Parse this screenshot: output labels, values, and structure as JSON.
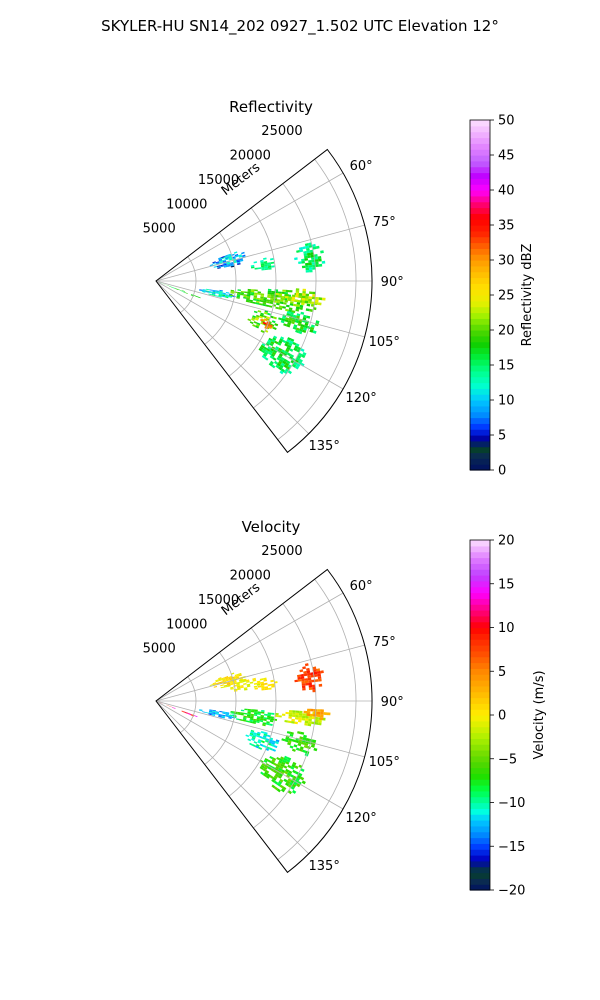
{
  "figure": {
    "suptitle": "SKYLER-HU  SN14_202  0927_1.502 UTC Elevation 12°"
  },
  "chart_data": [
    {
      "type": "heatmap",
      "projection": "polar-sector",
      "title": "Reflectivity",
      "radial_label": "Meters",
      "radial_ticks": [
        5000,
        10000,
        15000,
        20000,
        25000
      ],
      "radial_tick_labels": [
        "5000",
        "10000",
        "15000",
        "20000",
        "25000"
      ],
      "rmax": 27000,
      "angular_range_deg": [
        52.5,
        142.5
      ],
      "angular_ticks": [
        60,
        75,
        90,
        105,
        120,
        135
      ],
      "angular_tick_labels": [
        "60°",
        "75°",
        "90°",
        "105°",
        "120°",
        "135°"
      ],
      "grid": true,
      "colorbar": {
        "label": "Reflectivity dBZ",
        "range": [
          0,
          50
        ],
        "ticks": [
          0,
          5,
          10,
          15,
          20,
          25,
          30,
          35,
          40,
          45,
          50
        ],
        "tick_labels": [
          "0",
          "5",
          "10",
          "15",
          "20",
          "25",
          "30",
          "35",
          "40",
          "45",
          "50"
        ]
      },
      "echo_regions": [
        {
          "az": [
            69,
            79
          ],
          "r": [
            7000,
            11500
          ],
          "value": 10,
          "spread": 4
        },
        {
          "az": [
            78,
            84
          ],
          "r": [
            12000,
            15000
          ],
          "value": 15,
          "spread": 2
        },
        {
          "az": [
            76,
            86
          ],
          "r": [
            17500,
            21000
          ],
          "value": 16,
          "spread": 3
        },
        {
          "az": [
            98,
            104
          ],
          "r": [
            5500,
            10000
          ],
          "value": 13,
          "spread": 4
        },
        {
          "az": [
            94,
            103
          ],
          "r": [
            9000,
            20000
          ],
          "value": 20,
          "spread": 3
        },
        {
          "az": [
            93,
            99
          ],
          "r": [
            15000,
            21000
          ],
          "value": 23,
          "spread": 3
        },
        {
          "az": [
            105,
            115
          ],
          "r": [
            12000,
            16000
          ],
          "value": 21,
          "spread": 4
        },
        {
          "az": [
            109,
            113
          ],
          "r": [
            13500,
            15500
          ],
          "value": 34,
          "spread": 3
        },
        {
          "az": [
            102,
            110
          ],
          "r": [
            16000,
            21000
          ],
          "value": 18,
          "spread": 3
        },
        {
          "az": [
            113,
            126
          ],
          "r": [
            15000,
            21000
          ],
          "value": 17,
          "spread": 3
        },
        {
          "az": [
            109.5,
            111.5
          ],
          "r": [
            500,
            6000
          ],
          "value": 18,
          "spread": 2
        }
      ]
    },
    {
      "type": "heatmap",
      "projection": "polar-sector",
      "title": "Velocity",
      "radial_label": "Meters",
      "radial_ticks": [
        5000,
        10000,
        15000,
        20000,
        25000
      ],
      "radial_tick_labels": [
        "5000",
        "10000",
        "15000",
        "20000",
        "25000"
      ],
      "rmax": 27000,
      "angular_range_deg": [
        52.5,
        142.5
      ],
      "angular_ticks": [
        60,
        75,
        90,
        105,
        120,
        135
      ],
      "angular_tick_labels": [
        "60°",
        "75°",
        "90°",
        "105°",
        "120°",
        "135°"
      ],
      "grid": true,
      "colorbar": {
        "label": "Velocity (m/s)",
        "range": [
          -20,
          20
        ],
        "ticks": [
          -20,
          -15,
          -10,
          -5,
          0,
          5,
          10,
          15,
          20
        ],
        "tick_labels": [
          "−20",
          "−15",
          "−10",
          "−5",
          "0",
          "5",
          "10",
          "15",
          "20"
        ]
      },
      "echo_regions": [
        {
          "az": [
            69,
            79
          ],
          "r": [
            7000,
            11500
          ],
          "value": 1,
          "spread": 2
        },
        {
          "az": [
            76,
            83
          ],
          "r": [
            9000,
            13000
          ],
          "value": 0,
          "spread": 1.5
        },
        {
          "az": [
            78,
            84
          ],
          "r": [
            12000,
            15000
          ],
          "value": 1,
          "spread": 1
        },
        {
          "az": [
            76,
            86
          ],
          "r": [
            17500,
            21000
          ],
          "value": 8,
          "spread": 2
        },
        {
          "az": [
            98,
            104
          ],
          "r": [
            5500,
            10000
          ],
          "value": -12,
          "spread": 2
        },
        {
          "az": [
            94,
            103
          ],
          "r": [
            9000,
            15000
          ],
          "value": -7,
          "spread": 2
        },
        {
          "az": [
            93,
            99
          ],
          "r": [
            15000,
            21000
          ],
          "value": -1,
          "spread": 2
        },
        {
          "az": [
            92,
            96
          ],
          "r": [
            18500,
            21500
          ],
          "value": 4,
          "spread": 1.5
        },
        {
          "az": [
            105,
            115
          ],
          "r": [
            12000,
            16000
          ],
          "value": -10,
          "spread": 2
        },
        {
          "az": [
            102,
            110
          ],
          "r": [
            16000,
            21000
          ],
          "value": -6,
          "spread": 2
        },
        {
          "az": [
            113,
            126
          ],
          "r": [
            15000,
            21000
          ],
          "value": -6,
          "spread": 2
        },
        {
          "az": [
            109.5,
            111.5
          ],
          "r": [
            500,
            6000
          ],
          "value": 12,
          "spread": 4
        }
      ]
    }
  ]
}
